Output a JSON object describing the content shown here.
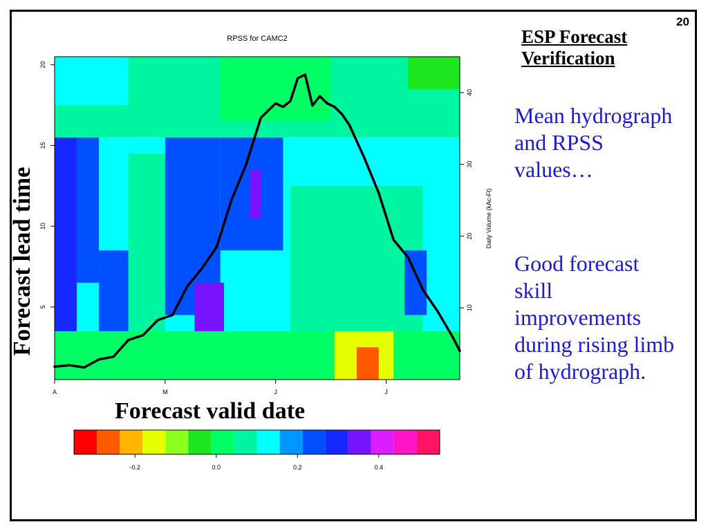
{
  "slide": {
    "number": "20",
    "heading_line1": "ESP Forecast",
    "heading_line2": "Verification",
    "text1": "Mean hydrograph and RPSS values…",
    "text2": "Good forecast skill improvements during rising limb of hydrograph.",
    "overlay_ylabel": "Forecast lead time",
    "overlay_xlabel": "Forecast valid date"
  },
  "chart_data": {
    "type": "heatmap",
    "title": "RPSS for CAMC2",
    "xlabel": "",
    "ylabel": "",
    "y2label": "Daily Volume (kAc-Ft)",
    "x_ticks": [
      "A",
      "M",
      "J",
      "J"
    ],
    "x_tick_days": [
      0,
      30,
      60,
      90
    ],
    "xlim_days": [
      0,
      110
    ],
    "y_ticks": [
      5,
      10,
      15,
      20
    ],
    "ylim": [
      0.5,
      20.5
    ],
    "y2_ticks": [
      10,
      20,
      30,
      40
    ],
    "y2lim": [
      0,
      45
    ],
    "colorbar": {
      "colors": [
        "#ff0000",
        "#ff5a00",
        "#ffb400",
        "#e6ff00",
        "#8cff1e",
        "#1ee61e",
        "#00ff64",
        "#00f5a0",
        "#00ffff",
        "#0096ff",
        "#0050ff",
        "#1428ff",
        "#7814ff",
        "#dc1eff",
        "#ff14c8",
        "#ff1464"
      ],
      "vmin": -0.35,
      "vmax": 0.55,
      "ticks": [
        "-0.2",
        "0.0",
        "0.2",
        "0.4"
      ]
    },
    "hydrograph_day": [
      0,
      4,
      8,
      12,
      16,
      20,
      24,
      28,
      32,
      36,
      40,
      44,
      48,
      52,
      56,
      58,
      60,
      62,
      64,
      66,
      68,
      70,
      72,
      74,
      76,
      78,
      80,
      84,
      88,
      92,
      96,
      100,
      104,
      108,
      110
    ],
    "hydrograph_volume": [
      1.8,
      2.0,
      1.7,
      2.8,
      3.2,
      5.5,
      6.2,
      8.3,
      9.0,
      13.0,
      15.5,
      18.5,
      25.0,
      30.0,
      36.5,
      37.5,
      38.5,
      38.0,
      38.8,
      42.0,
      42.5,
      38.2,
      39.5,
      38.5,
      38.0,
      37.0,
      35.5,
      31.0,
      26.0,
      19.5,
      17.0,
      12.5,
      9.5,
      6.0,
      4.0
    ],
    "rpss_bands": [
      {
        "lead_from": 0.5,
        "lead_to": 3.5,
        "day_start": 0,
        "day_end": 110,
        "value": 0.0
      },
      {
        "lead_from": 0.5,
        "lead_to": 3.5,
        "day_start": 76,
        "day_end": 92,
        "value": -0.14
      },
      {
        "lead_from": 0.5,
        "lead_to": 2.5,
        "day_start": 82,
        "day_end": 88,
        "value": -0.24
      },
      {
        "lead_from": 3.5,
        "lead_to": 15.5,
        "day_start": 0,
        "day_end": 110,
        "value": 0.15
      },
      {
        "lead_from": 3.5,
        "lead_to": 15.5,
        "day_start": 0,
        "day_end": 6,
        "value": 0.28
      },
      {
        "lead_from": 6.5,
        "lead_to": 15.5,
        "day_start": 6,
        "day_end": 12,
        "value": 0.24
      },
      {
        "lead_from": 3.5,
        "lead_to": 8.5,
        "day_start": 12,
        "day_end": 20,
        "value": 0.26
      },
      {
        "lead_from": 3.5,
        "lead_to": 14.5,
        "day_start": 20,
        "day_end": 30,
        "value": 0.05
      },
      {
        "lead_from": 4.5,
        "lead_to": 15.5,
        "day_start": 30,
        "day_end": 45,
        "value": 0.26
      },
      {
        "lead_from": 3.5,
        "lead_to": 6.5,
        "day_start": 38,
        "day_end": 46,
        "value": 0.38
      },
      {
        "lead_from": 8.5,
        "lead_to": 15.5,
        "day_start": 45,
        "day_end": 62,
        "value": 0.26
      },
      {
        "lead_from": 10.5,
        "lead_to": 13.5,
        "day_start": 53,
        "day_end": 56,
        "value": 0.38
      },
      {
        "lead_from": 3.5,
        "lead_to": 12.5,
        "day_start": 64,
        "day_end": 100,
        "value": 0.08
      },
      {
        "lead_from": 4.5,
        "lead_to": 8.5,
        "day_start": 95,
        "day_end": 101,
        "value": 0.22
      },
      {
        "lead_from": 15.5,
        "lead_to": 20.5,
        "day_start": 0,
        "day_end": 110,
        "value": 0.07
      },
      {
        "lead_from": 17.5,
        "lead_to": 20.5,
        "day_start": 0,
        "day_end": 20,
        "value": 0.14
      },
      {
        "lead_from": 16.5,
        "lead_to": 20.5,
        "day_start": 45,
        "day_end": 75,
        "value": 0.0
      },
      {
        "lead_from": 18.5,
        "lead_to": 20.5,
        "day_start": 96,
        "day_end": 110,
        "value": -0.02
      }
    ]
  }
}
